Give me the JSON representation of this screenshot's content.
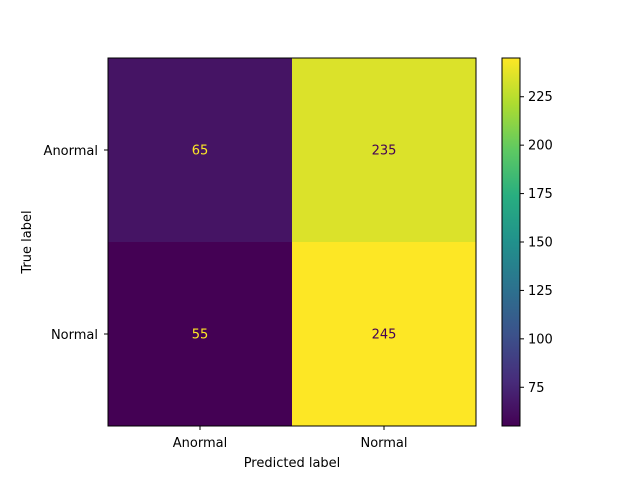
{
  "chart_data": {
    "type": "heatmap",
    "title": "",
    "xlabel": "Predicted label",
    "ylabel": "True label",
    "x_categories": [
      "Anormal",
      "Normal"
    ],
    "y_categories": [
      "Anormal",
      "Normal"
    ],
    "matrix": [
      [
        65,
        235
      ],
      [
        55,
        245
      ]
    ],
    "colormap": "viridis",
    "colorbar": {
      "min": 55,
      "max": 245,
      "ticks": [
        75,
        100,
        125,
        150,
        175,
        200,
        225
      ]
    },
    "colors": {
      "low_text": "#fde725",
      "high_text": "#440154"
    }
  }
}
